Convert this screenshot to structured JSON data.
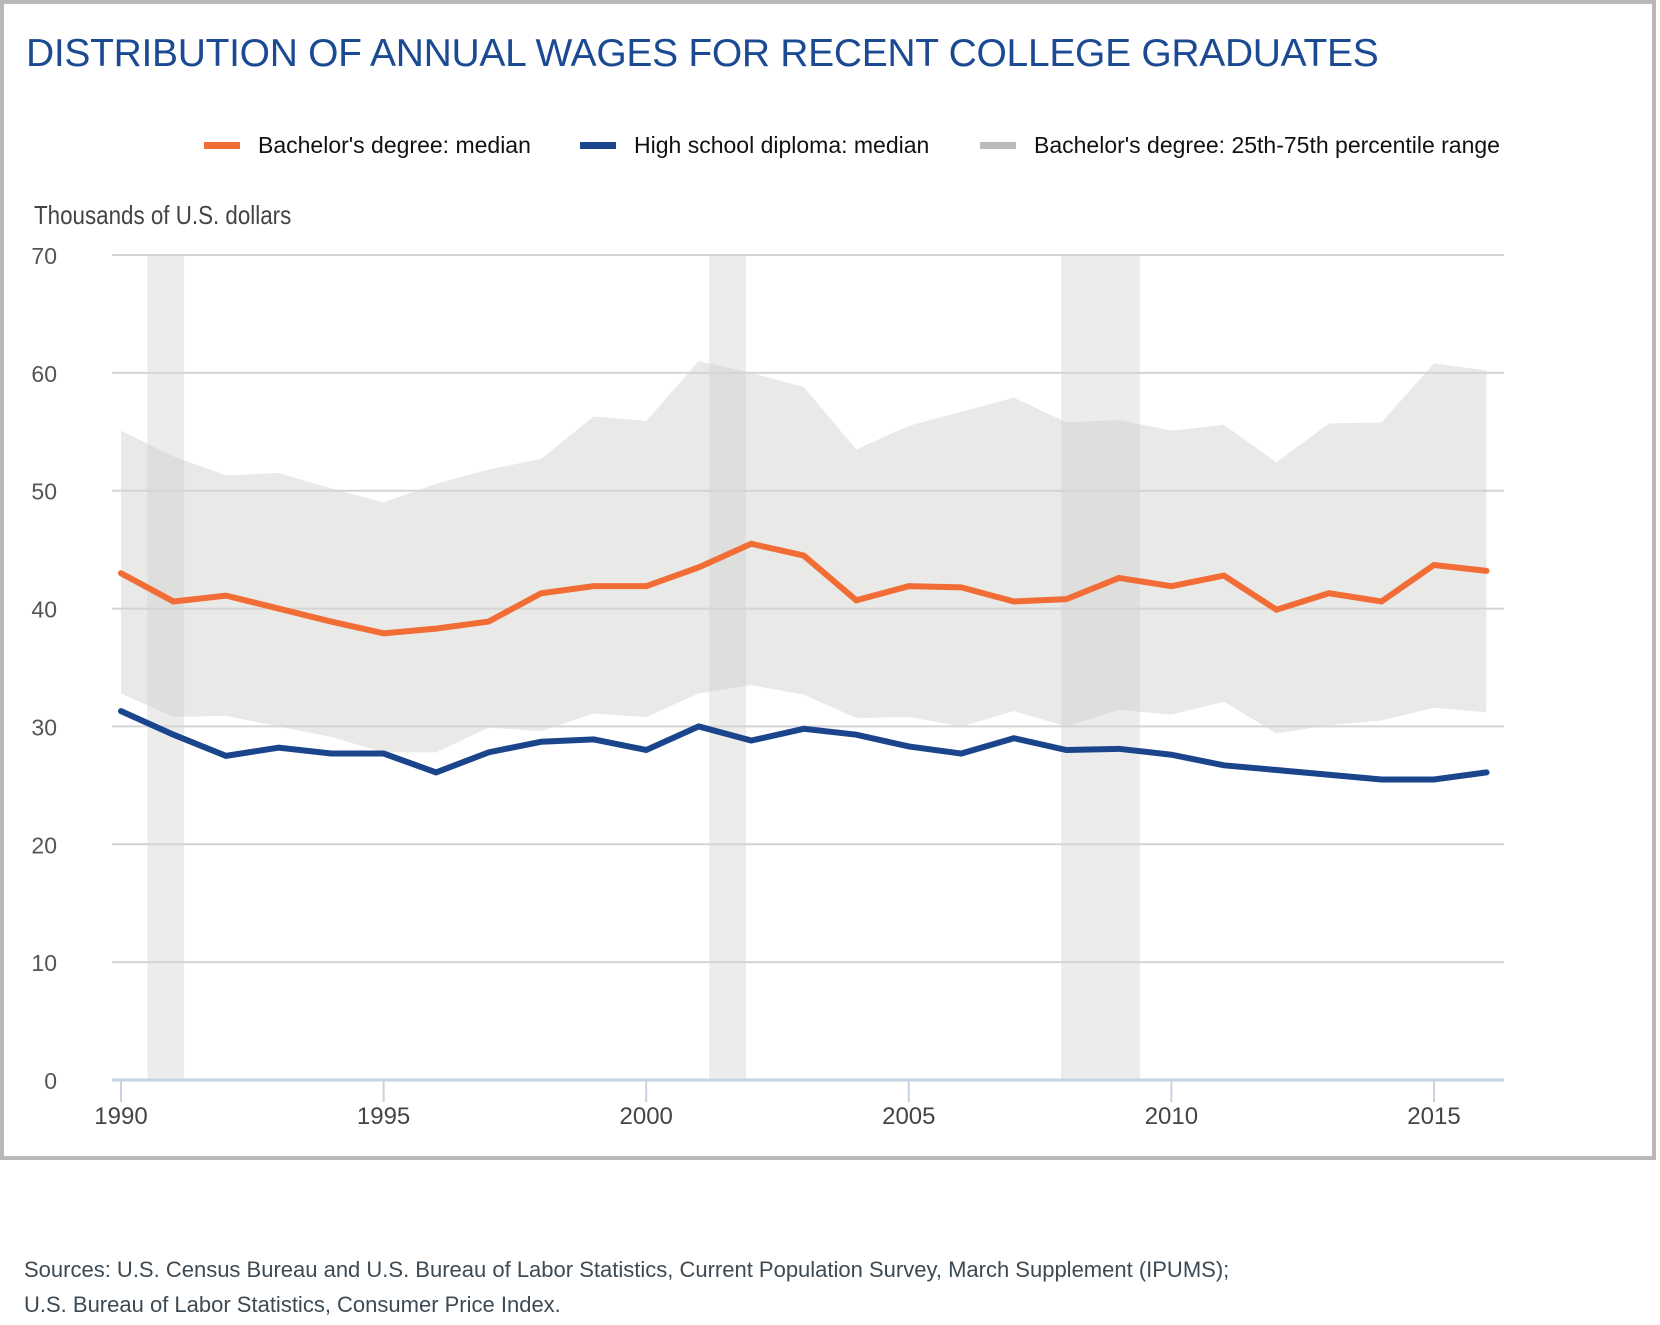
{
  "title": "DISTRIBUTION OF ANNUAL WAGES FOR RECENT COLLEGE GRADUATES",
  "legend": [
    {
      "label": "Bachelor's degree: median",
      "color": "#f26d35"
    },
    {
      "label": "High school diploma: median",
      "color": "#1a458c"
    },
    {
      "label": "Bachelor's degree: 25th-75th percentile range",
      "color": "#bbbbbb"
    }
  ],
  "sources": [
    "Sources: U.S. Census Bureau and U.S. Bureau of Labor Statistics, Current Population Survey, March Supplement (IPUMS);",
    "U.S. Bureau of Labor Statistics, Consumer Price Index."
  ],
  "chart_data": {
    "type": "line",
    "title": "DISTRIBUTION OF ANNUAL WAGES FOR RECENT COLLEGE GRADUATES",
    "xlabel": "",
    "ylabel": "Thousands of U.S. dollars",
    "ylim": [
      0,
      70
    ],
    "xlim": [
      1990,
      2016
    ],
    "yticks": [
      0,
      10,
      20,
      30,
      40,
      50,
      60,
      70
    ],
    "xticks": [
      1990,
      1995,
      2000,
      2005,
      2010,
      2015
    ],
    "grid": true,
    "legend_position": "top-right",
    "x": [
      1990,
      1991,
      1992,
      1993,
      1994,
      1995,
      1996,
      1997,
      1998,
      1999,
      2000,
      2001,
      2002,
      2003,
      2004,
      2005,
      2006,
      2007,
      2008,
      2009,
      2010,
      2011,
      2012,
      2013,
      2014,
      2015,
      2016
    ],
    "series": [
      {
        "name": "Bachelor's degree: median",
        "color": "#f26d35",
        "values": [
          43.0,
          40.6,
          41.1,
          40.0,
          38.9,
          37.9,
          38.3,
          38.9,
          41.3,
          41.9,
          41.9,
          43.5,
          45.5,
          44.5,
          40.7,
          41.9,
          41.8,
          40.6,
          40.8,
          42.6,
          41.9,
          42.8,
          39.9,
          41.3,
          40.6,
          43.7,
          43.2
        ]
      },
      {
        "name": "High school diploma: median",
        "color": "#1a458c",
        "values": [
          31.3,
          29.3,
          27.5,
          28.2,
          27.7,
          27.7,
          26.1,
          27.8,
          28.7,
          28.9,
          28.0,
          30.0,
          28.8,
          29.8,
          29.3,
          28.3,
          27.7,
          29.0,
          28.0,
          28.1,
          27.6,
          26.7,
          26.3,
          25.9,
          25.5,
          25.5,
          26.1
        ]
      }
    ],
    "band": {
      "name": "Bachelor's degree: 25th-75th percentile range",
      "color": "#e8e8e6",
      "lower": [
        32.8,
        30.8,
        30.9,
        30.0,
        29.1,
        27.8,
        27.8,
        29.9,
        29.6,
        31.1,
        30.8,
        32.8,
        33.5,
        32.7,
        30.7,
        30.8,
        30.0,
        31.3,
        30.0,
        31.4,
        31.0,
        32.1,
        29.4,
        30.1,
        30.5,
        31.6,
        31.2
      ],
      "upper": [
        55.1,
        52.9,
        51.3,
        51.5,
        50.2,
        49.0,
        50.6,
        51.8,
        52.7,
        56.3,
        55.9,
        61.0,
        60.0,
        58.8,
        53.5,
        55.5,
        56.7,
        57.9,
        55.8,
        56.0,
        55.1,
        55.6,
        52.4,
        55.7,
        55.8,
        60.8,
        60.2
      ]
    },
    "shaded_periods": [
      {
        "start": 1990.5,
        "end": 1991.2
      },
      {
        "start": 2001.2,
        "end": 2001.9
      },
      {
        "start": 2007.9,
        "end": 2009.4
      }
    ]
  }
}
